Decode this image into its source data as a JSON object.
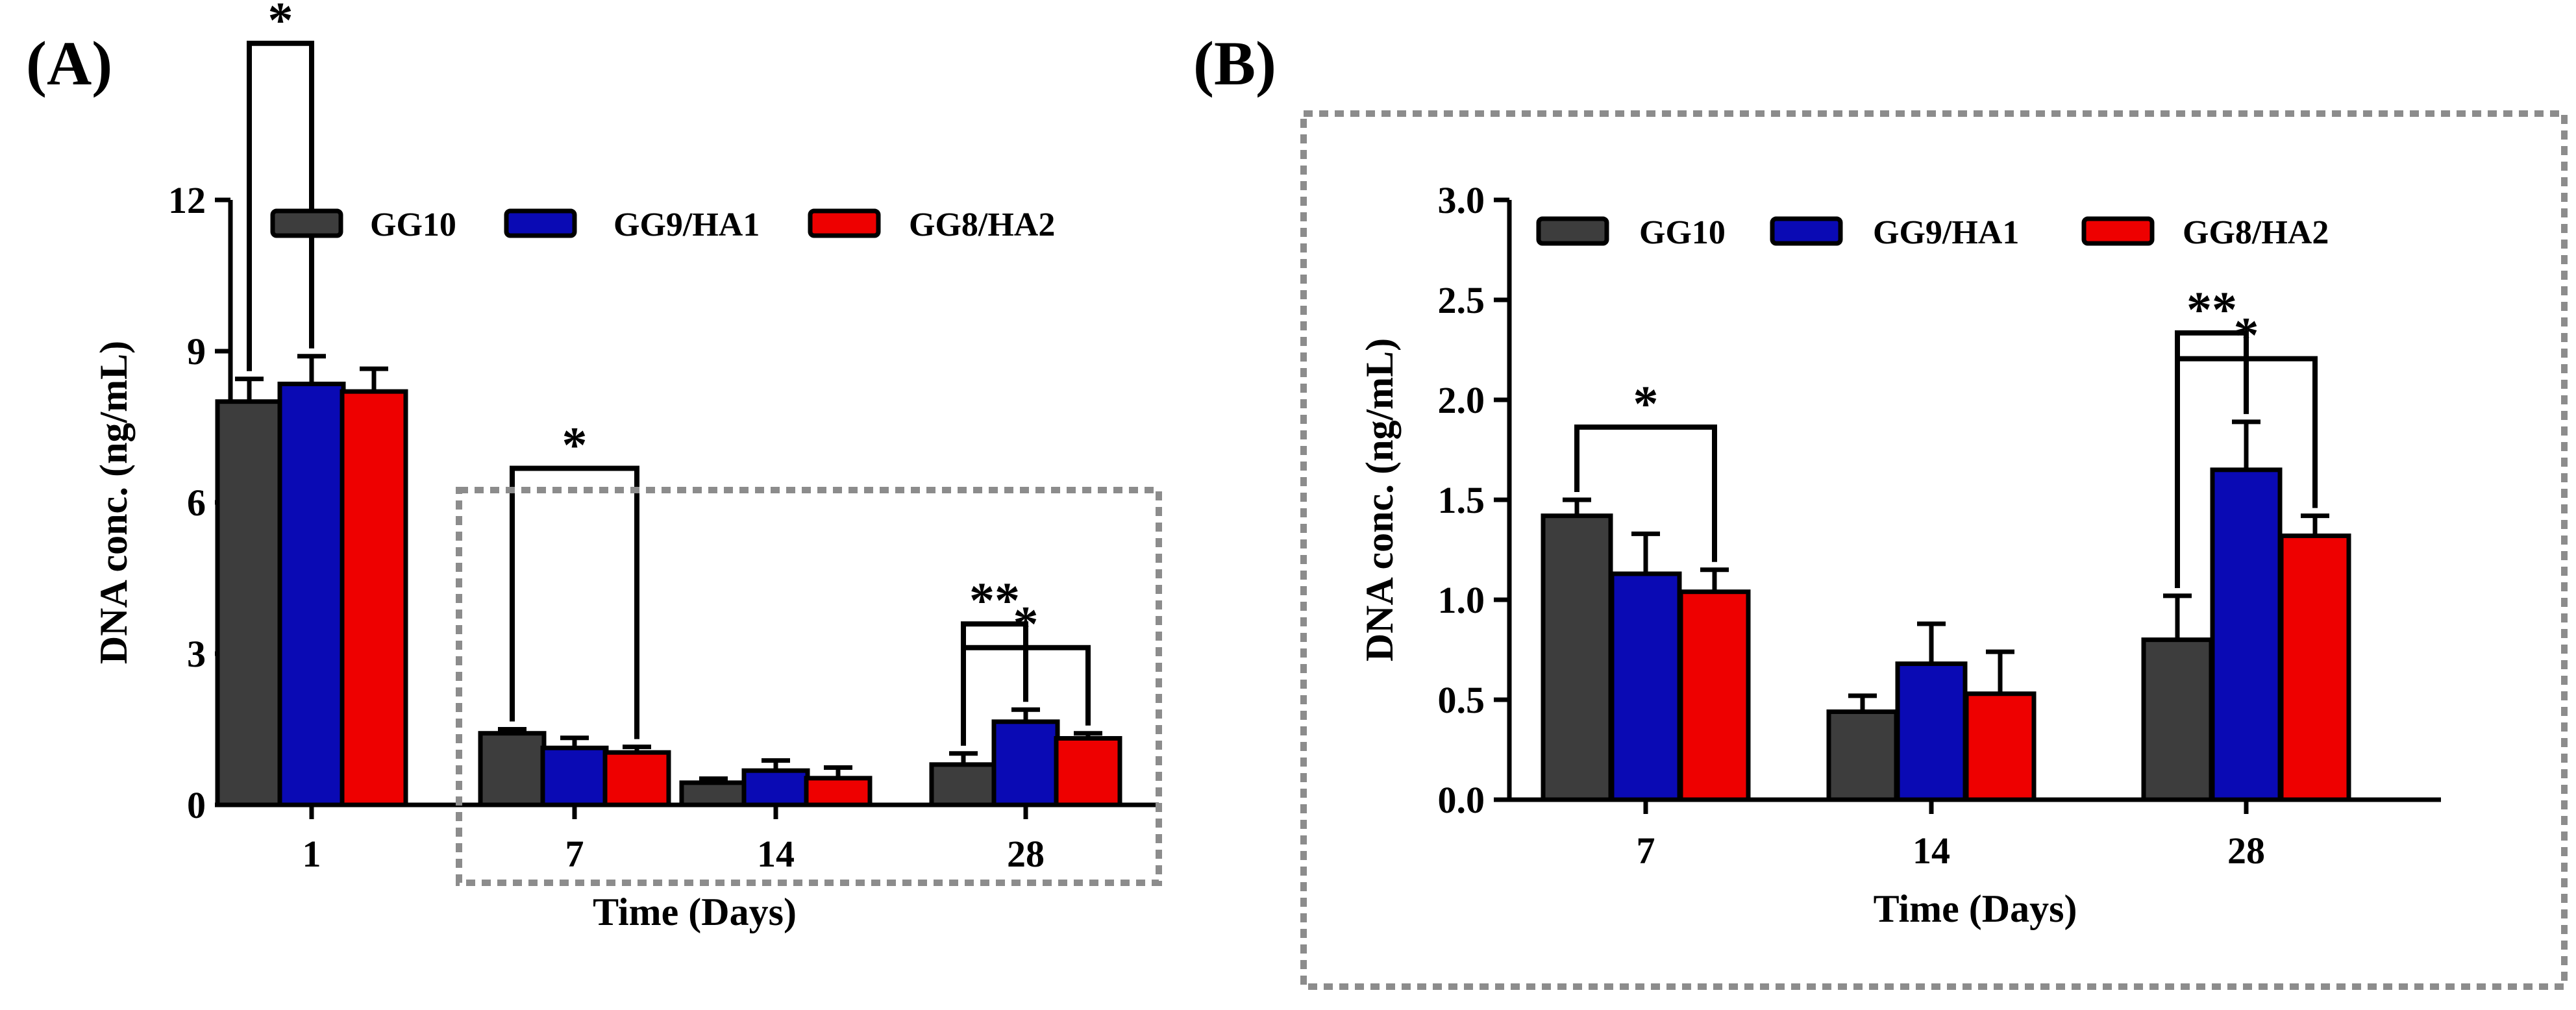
{
  "panels": {
    "a": {
      "label": "(A)"
    },
    "b": {
      "label": "(B)"
    }
  },
  "legend": [
    "GG10",
    "GG9/HA1",
    "GG8/HA2"
  ],
  "colors": {
    "GG10": "#3d3d3d",
    "GG9/HA1": "#0a0ab4",
    "GG8/HA2": "#ee0000",
    "inset_box": "#8c8c8c"
  },
  "chart_data": [
    {
      "type": "bar",
      "panel": "(A)",
      "title": "",
      "xlabel": "Time (Days)",
      "ylabel": "DNA conc. (ng/mL)",
      "categories": [
        "1",
        "7",
        "14",
        "28"
      ],
      "ylim": [
        0,
        12
      ],
      "yticks": [
        "0",
        "3",
        "6",
        "9",
        "12"
      ],
      "legend_position": "top",
      "series": [
        {
          "name": "GG10",
          "values": [
            8.0,
            1.42,
            0.44,
            0.8
          ],
          "errors": [
            0.45,
            0.08,
            0.08,
            0.22
          ]
        },
        {
          "name": "GG9/HA1",
          "values": [
            8.35,
            1.13,
            0.68,
            1.65
          ],
          "errors": [
            0.55,
            0.2,
            0.2,
            0.24
          ]
        },
        {
          "name": "GG8/HA2",
          "values": [
            8.2,
            1.04,
            0.53,
            1.32
          ],
          "errors": [
            0.45,
            0.11,
            0.21,
            0.1
          ]
        }
      ],
      "significance": [
        {
          "category": "1",
          "from": "GG10",
          "to": "GG9/HA1",
          "label": "*"
        },
        {
          "category": "7",
          "from": "GG10",
          "to": "GG8/HA2",
          "label": "*"
        },
        {
          "category": "28",
          "from": "GG10",
          "to": "GG9/HA1",
          "label": "**"
        },
        {
          "category": "28",
          "from": "GG10",
          "to": "GG8/HA2",
          "label": "*"
        }
      ]
    },
    {
      "type": "bar",
      "panel": "(B)",
      "title": "",
      "xlabel": "Time (Days)",
      "ylabel": "DNA conc. (ng/mL)",
      "categories": [
        "7",
        "14",
        "28"
      ],
      "ylim": [
        0,
        3.0
      ],
      "yticks": [
        "0.0",
        "0.5",
        "1.0",
        "1.5",
        "2.0",
        "2.5",
        "3.0"
      ],
      "legend_position": "top",
      "series": [
        {
          "name": "GG10",
          "values": [
            1.42,
            0.44,
            0.8
          ],
          "errors": [
            0.08,
            0.08,
            0.22
          ]
        },
        {
          "name": "GG9/HA1",
          "values": [
            1.13,
            0.68,
            1.65
          ],
          "errors": [
            0.2,
            0.2,
            0.24
          ]
        },
        {
          "name": "GG8/HA2",
          "values": [
            1.04,
            0.53,
            1.32
          ],
          "errors": [
            0.11,
            0.21,
            0.1
          ]
        }
      ],
      "significance": [
        {
          "category": "7",
          "from": "GG10",
          "to": "GG8/HA2",
          "label": "*"
        },
        {
          "category": "28",
          "from": "GG10",
          "to": "GG9/HA1",
          "label": "**"
        },
        {
          "category": "28",
          "from": "GG10",
          "to": "GG8/HA2",
          "label": "*"
        }
      ]
    }
  ]
}
